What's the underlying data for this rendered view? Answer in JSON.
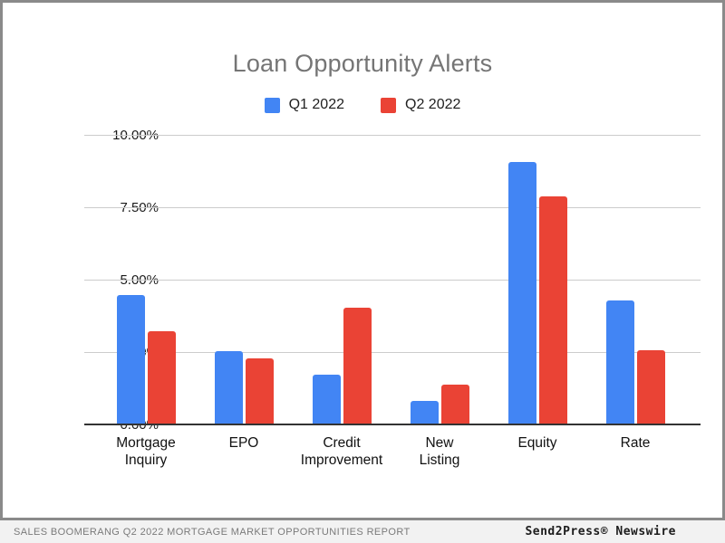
{
  "chart_data": {
    "type": "bar",
    "title": "Loan Opportunity Alerts",
    "categories": [
      "Mortgage Inquiry",
      "EPO",
      "Credit Improvement",
      "New Listing",
      "Equity",
      "Rate"
    ],
    "series": [
      {
        "name": "Q1 2022",
        "color": "#4285F4",
        "values": [
          4.5,
          2.55,
          1.75,
          0.85,
          9.1,
          4.3
        ]
      },
      {
        "name": "Q2 2022",
        "color": "#EA4335",
        "values": [
          3.25,
          2.3,
          4.05,
          1.4,
          7.9,
          2.6
        ]
      }
    ],
    "xlabel": "",
    "ylabel": "",
    "ylim": [
      0,
      10
    ],
    "yticks": [
      "0.00%",
      "2.50%",
      "5.00%",
      "7.50%",
      "10.00%"
    ],
    "value_format": "percent",
    "grid": true,
    "legend_position": "top"
  },
  "colors": {
    "q1_bar": "#4285F4",
    "q2_bar": "#EA4335",
    "title_text": "#757575",
    "gridline": "#cccccc",
    "baseline": "#333333",
    "panel_border": "#8a8a8a",
    "caption_background": "#f2f2f2"
  },
  "footer": {
    "left": "SALES BOOMERANG Q2 2022 MORTGAGE MARKET OPPORTUNITIES REPORT",
    "right": "Send2Press® Newswire"
  }
}
